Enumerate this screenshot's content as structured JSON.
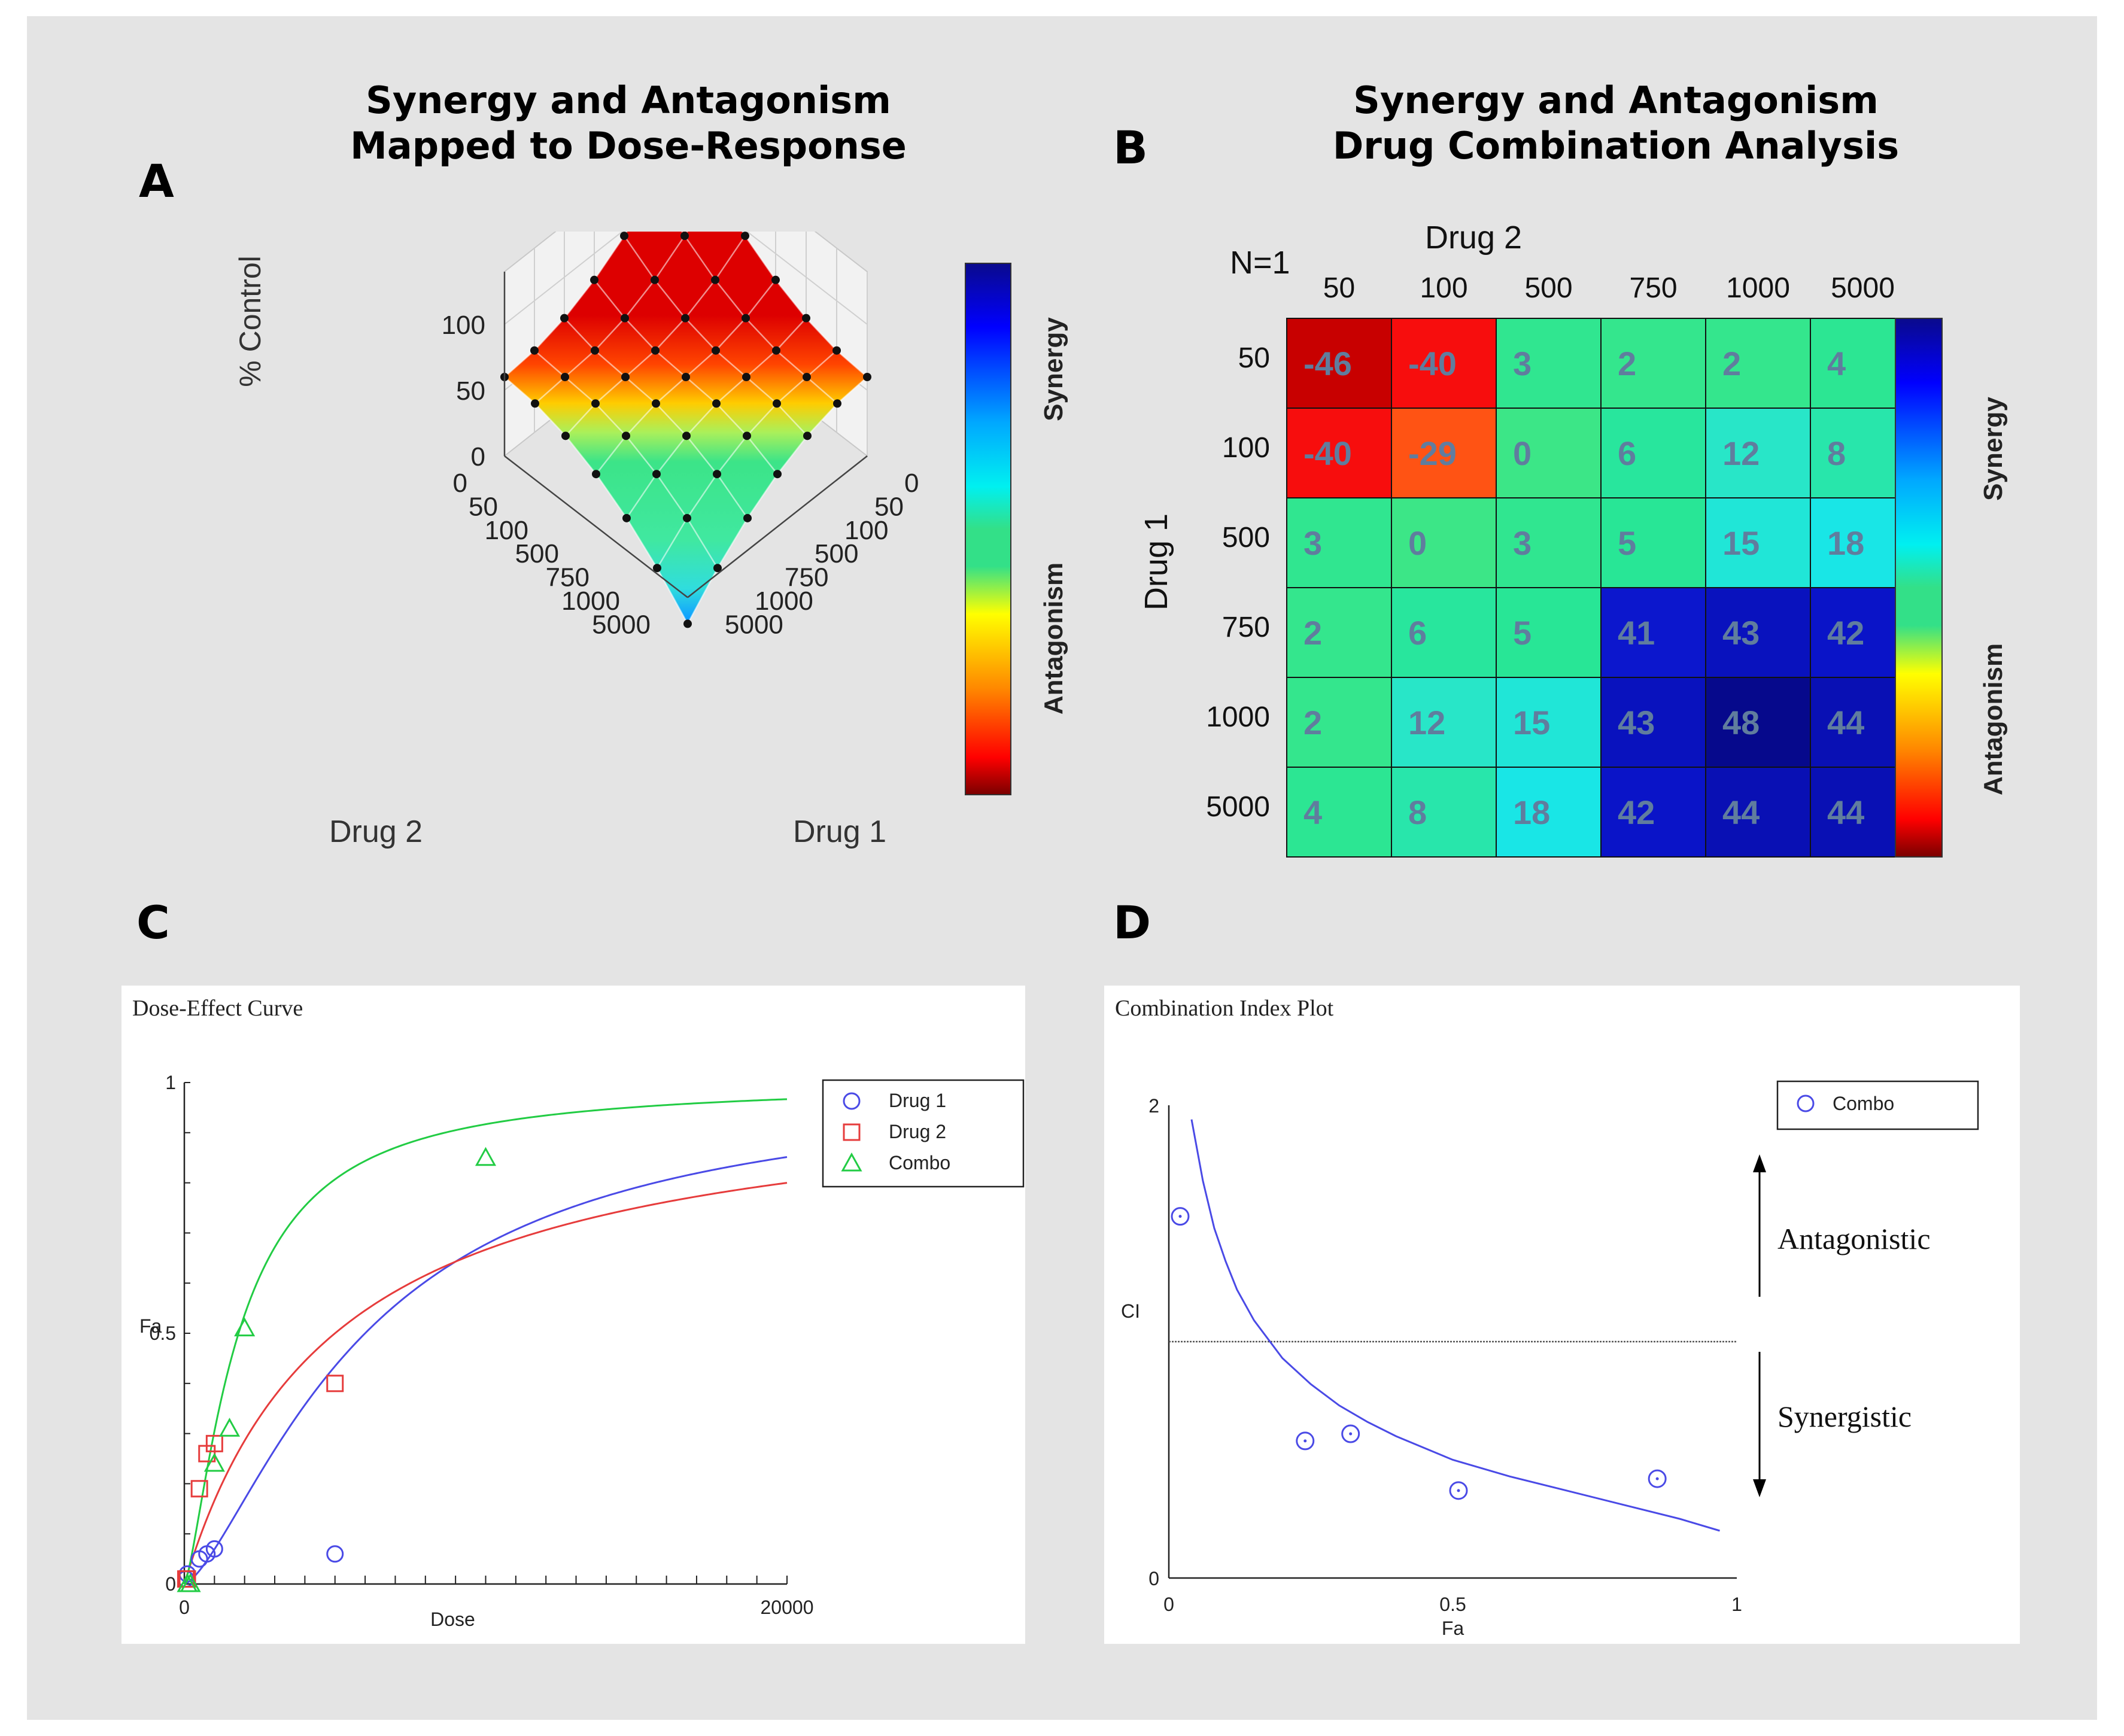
{
  "panels": {
    "A": {
      "letter": "A",
      "title_line1": "Synergy and Antagonism",
      "title_line2": "Mapped to Dose-Response",
      "z_label": "% Control",
      "z_ticks": [
        "100",
        "50",
        "0"
      ],
      "drug2_label": "Drug 2",
      "drug1_label": "Drug 1",
      "drug2_ticks": [
        "0",
        "50",
        "100",
        "500",
        "750",
        "1000",
        "5000"
      ],
      "drug1_ticks": [
        "0",
        "50",
        "100",
        "500",
        "750",
        "1000",
        "5000"
      ],
      "colorbar_top_label": "Synergy",
      "colorbar_bottom_label": "Antagonism"
    },
    "B": {
      "letter": "B",
      "title_line1": "Synergy and Antagonism",
      "title_line2": "Drug Combination Analysis",
      "n_label": "N=1",
      "x_label": "Drug 2",
      "y_label": "Drug 1",
      "colorbar_top_label": "Synergy",
      "colorbar_bottom_label": "Antagonism"
    },
    "C": {
      "letter": "C",
      "box_title": "Dose-Effect Curve"
    },
    "D": {
      "letter": "D",
      "box_title": "Combination Index Plot"
    }
  },
  "colors": {
    "drug1": "#4a4ae6",
    "drug2": "#e63c3c",
    "combo": "#22cc44",
    "heat_text": "#607d9e"
  },
  "chart_data": [
    {
      "id": "A",
      "type": "heatmap",
      "title": "Synergy and Antagonism Mapped to Dose-Response",
      "xlabel": "Drug 2",
      "ylabel": "Drug 1",
      "zlabel": "% Control",
      "x_categories": [
        "0",
        "50",
        "100",
        "500",
        "750",
        "1000",
        "5000"
      ],
      "y_categories": [
        "0",
        "50",
        "100",
        "500",
        "750",
        "1000",
        "5000"
      ],
      "zlim": [
        0,
        130
      ],
      "colormap": "jet",
      "colorbar_labels": [
        "Synergy",
        "Antagonism"
      ]
    },
    {
      "id": "B",
      "type": "heatmap",
      "title": "Synergy and Antagonism Drug Combination Analysis",
      "xlabel": "Drug 2",
      "ylabel": "Drug 1",
      "annotation": "N=1",
      "x_categories": [
        "50",
        "100",
        "500",
        "750",
        "1000",
        "5000"
      ],
      "y_categories": [
        "50",
        "100",
        "500",
        "750",
        "1000",
        "5000"
      ],
      "values": [
        [
          -46,
          -40,
          3,
          2,
          2,
          4
        ],
        [
          -40,
          -29,
          0,
          6,
          12,
          8
        ],
        [
          3,
          0,
          3,
          5,
          15,
          18
        ],
        [
          2,
          6,
          5,
          41,
          43,
          42
        ],
        [
          2,
          12,
          15,
          43,
          48,
          44
        ],
        [
          4,
          8,
          18,
          42,
          44,
          44
        ]
      ],
      "zlim": [
        -50,
        50
      ],
      "colorbar_labels": [
        "Synergy",
        "Antagonism"
      ]
    },
    {
      "id": "C",
      "type": "scatter",
      "title": "Dose-Effect Curve",
      "xlabel": "Dose",
      "ylabel": "Fa",
      "xlim": [
        0,
        20000
      ],
      "ylim": [
        0,
        1
      ],
      "x_tick_labels": [
        "0",
        "20000"
      ],
      "y_tick_labels": [
        "0",
        "0.5",
        "1"
      ],
      "legend": [
        "Drug 1",
        "Drug 2",
        "Combo"
      ],
      "series": [
        {
          "name": "Drug 1",
          "marker": "circle",
          "points": [
            [
              50,
              0.01
            ],
            [
              100,
              0.02
            ],
            [
              500,
              0.05
            ],
            [
              750,
              0.06
            ],
            [
              1000,
              0.07
            ],
            [
              5000,
              0.06
            ]
          ],
          "curve": {
            "dm": 6000,
            "m": 1.45
          }
        },
        {
          "name": "Drug 2",
          "marker": "square",
          "points": [
            [
              50,
              0.01
            ],
            [
              100,
              0.01
            ],
            [
              500,
              0.19
            ],
            [
              750,
              0.26
            ],
            [
              1000,
              0.28
            ],
            [
              5000,
              0.4
            ]
          ],
          "curve": {
            "dm": 5000,
            "m": 1.0
          }
        },
        {
          "name": "Combo",
          "marker": "triangle",
          "points": [
            [
              100,
              0.0
            ],
            [
              200,
              0.0
            ],
            [
              1000,
              0.24
            ],
            [
              1500,
              0.31
            ],
            [
              2000,
              0.51
            ],
            [
              10000,
              0.85
            ]
          ],
          "curve": {
            "dm": 1800,
            "m": 1.4
          }
        }
      ]
    },
    {
      "id": "D",
      "type": "scatter",
      "title": "Combination Index Plot",
      "xlabel": "Fa",
      "ylabel": "CI",
      "xlim": [
        0,
        1
      ],
      "ylim": [
        0,
        2
      ],
      "x_tick_labels": [
        "0",
        "0.5",
        "1"
      ],
      "y_tick_labels": [
        "0",
        "2"
      ],
      "reference_line": 1,
      "legend": [
        "Combo"
      ],
      "annotations": [
        "Antagonistic",
        "Synergistic"
      ],
      "series": [
        {
          "name": "Combo",
          "marker": "circle",
          "points": [
            [
              0.02,
              1.53
            ],
            [
              0.24,
              0.58
            ],
            [
              0.32,
              0.61
            ],
            [
              0.51,
              0.37
            ],
            [
              0.86,
              0.42
            ]
          ]
        }
      ],
      "curve": [
        [
          0.04,
          1.94
        ],
        [
          0.06,
          1.68
        ],
        [
          0.08,
          1.48
        ],
        [
          0.1,
          1.34
        ],
        [
          0.12,
          1.22
        ],
        [
          0.15,
          1.09
        ],
        [
          0.2,
          0.93
        ],
        [
          0.25,
          0.82
        ],
        [
          0.3,
          0.73
        ],
        [
          0.35,
          0.66
        ],
        [
          0.4,
          0.6
        ],
        [
          0.5,
          0.5
        ],
        [
          0.6,
          0.43
        ],
        [
          0.7,
          0.37
        ],
        [
          0.8,
          0.31
        ],
        [
          0.9,
          0.25
        ],
        [
          0.97,
          0.2
        ]
      ]
    }
  ]
}
